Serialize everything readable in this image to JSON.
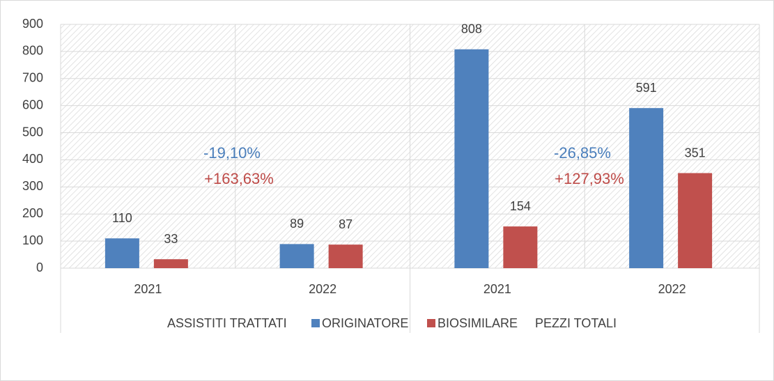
{
  "chart_data": {
    "type": "bar",
    "categories": [
      "2021",
      "2022",
      "2021",
      "2022"
    ],
    "group_labels": [
      "ASSISTITI TRATTATI",
      "PEZZI TOTALI"
    ],
    "series": [
      {
        "name": "ORIGINATORE",
        "color": "#4f81bd",
        "values": [
          110,
          89,
          808,
          591
        ]
      },
      {
        "name": "BIOSIMILARE",
        "color": "#c0504d",
        "values": [
          33,
          87,
          154,
          351
        ]
      }
    ],
    "annotations": [
      {
        "text": "-19,10%",
        "color": "#4a7ebb"
      },
      {
        "text": "+163,63%",
        "color": "#be4b48"
      },
      {
        "text": "-26,85%",
        "color": "#4a7ebb"
      },
      {
        "text": "+127,93%",
        "color": "#be4b48"
      }
    ],
    "ylim": [
      0,
      900
    ],
    "yticks": [
      0,
      100,
      200,
      300,
      400,
      500,
      600,
      700,
      800,
      900
    ],
    "grid": true
  }
}
